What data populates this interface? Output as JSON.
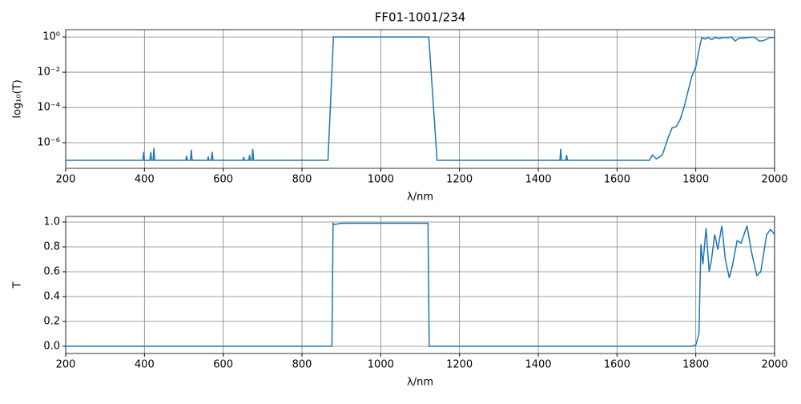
{
  "chart_data": [
    {
      "type": "line",
      "title": "FF01-1001/234",
      "x_label": "λ/nm",
      "y_label": "log₁₀(T)",
      "log_y": true,
      "grid": true,
      "xlim": [
        200,
        2000
      ],
      "xticks": [
        200,
        400,
        600,
        800,
        1000,
        1200,
        1400,
        1600,
        1800,
        2000
      ],
      "ylim": [
        3.5e-08,
        2.6
      ],
      "yticks": [
        {
          "value": 1e-06,
          "label": "10⁻⁶"
        },
        {
          "value": 0.0001,
          "label": "10⁻⁴"
        },
        {
          "value": 0.01,
          "label": "10⁻²"
        },
        {
          "value": 1,
          "label": "10⁰"
        }
      ],
      "series": [
        {
          "color": "#1f77b4",
          "x": [
            200,
            396,
            398,
            400,
            414,
            416,
            418,
            422,
            424,
            426,
            505,
            507,
            509,
            517,
            519,
            521,
            560,
            562,
            564,
            570,
            572,
            574,
            650,
            652,
            654,
            665,
            667,
            669,
            673,
            675,
            677,
            866,
            880,
            1000,
            1122,
            1143,
            1455,
            1457,
            1459,
            1470,
            1472,
            1474,
            1682,
            1690,
            1700,
            1715,
            1730,
            1740,
            1750,
            1760,
            1770,
            1780,
            1790,
            1800,
            1810,
            1815,
            1825,
            1830,
            1840,
            1850,
            1860,
            1870,
            1880,
            1890,
            1900,
            1910,
            1920,
            1940,
            1950,
            1960,
            1970,
            1990,
            2000
          ],
          "values": [
            1e-07,
            1e-07,
            3e-07,
            1e-07,
            1e-07,
            3e-07,
            1e-07,
            1e-07,
            5e-07,
            1e-07,
            1e-07,
            1.8e-07,
            1e-07,
            1e-07,
            4e-07,
            1e-07,
            1e-07,
            1.6e-07,
            1e-07,
            1e-07,
            3e-07,
            1e-07,
            1e-07,
            1.5e-07,
            1e-07,
            1e-07,
            2e-07,
            1e-07,
            1e-07,
            4.5e-07,
            1e-07,
            1e-07,
            1,
            1,
            1,
            1e-07,
            1e-07,
            4.5e-07,
            1e-07,
            1e-07,
            2e-07,
            1e-07,
            1e-07,
            2e-07,
            1.2e-07,
            2e-07,
            2e-06,
            7e-06,
            8e-06,
            2e-05,
            0.0001,
            0.0008,
            0.006,
            0.02,
            0.3,
            0.9,
            0.75,
            0.95,
            0.7,
            0.95,
            0.8,
            0.95,
            0.9,
            1,
            0.6,
            0.85,
            0.85,
            0.97,
            0.95,
            0.6,
            0.6,
            0.95,
            0.9
          ]
        }
      ]
    },
    {
      "type": "line",
      "x_label": "λ/nm",
      "y_label": "T",
      "log_y": false,
      "grid": true,
      "xlim": [
        200,
        2000
      ],
      "xticks": [
        200,
        400,
        600,
        800,
        1000,
        1200,
        1400,
        1600,
        1800,
        2000
      ],
      "ylim": [
        -0.058,
        1.045
      ],
      "yticks": [
        {
          "value": 0,
          "label": "0.0"
        },
        {
          "value": 0.2,
          "label": "0.2"
        },
        {
          "value": 0.4,
          "label": "0.4"
        },
        {
          "value": 0.6,
          "label": "0.6"
        },
        {
          "value": 0.8,
          "label": "0.8"
        },
        {
          "value": 1,
          "label": "1.0"
        }
      ],
      "series": [
        {
          "color": "#1f77b4",
          "x": [
            200,
            876,
            879,
            882,
            900,
            950,
            1000,
            1050,
            1100,
            1120,
            1123,
            1790,
            1800,
            1808,
            1813,
            1818,
            1826,
            1834,
            1840,
            1848,
            1856,
            1866,
            1875,
            1885,
            1893,
            1905,
            1915,
            1930,
            1942,
            1955,
            1965,
            1980,
            1990,
            2000
          ],
          "values": [
            0,
            0,
            0.99,
            0.98,
            0.99,
            0.99,
            0.99,
            0.99,
            0.99,
            0.99,
            0,
            0,
            0.01,
            0.1,
            0.82,
            0.66,
            0.95,
            0.6,
            0.7,
            0.9,
            0.78,
            0.97,
            0.7,
            0.55,
            0.65,
            0.85,
            0.83,
            0.97,
            0.75,
            0.57,
            0.6,
            0.9,
            0.94,
            0.9
          ]
        }
      ]
    }
  ]
}
